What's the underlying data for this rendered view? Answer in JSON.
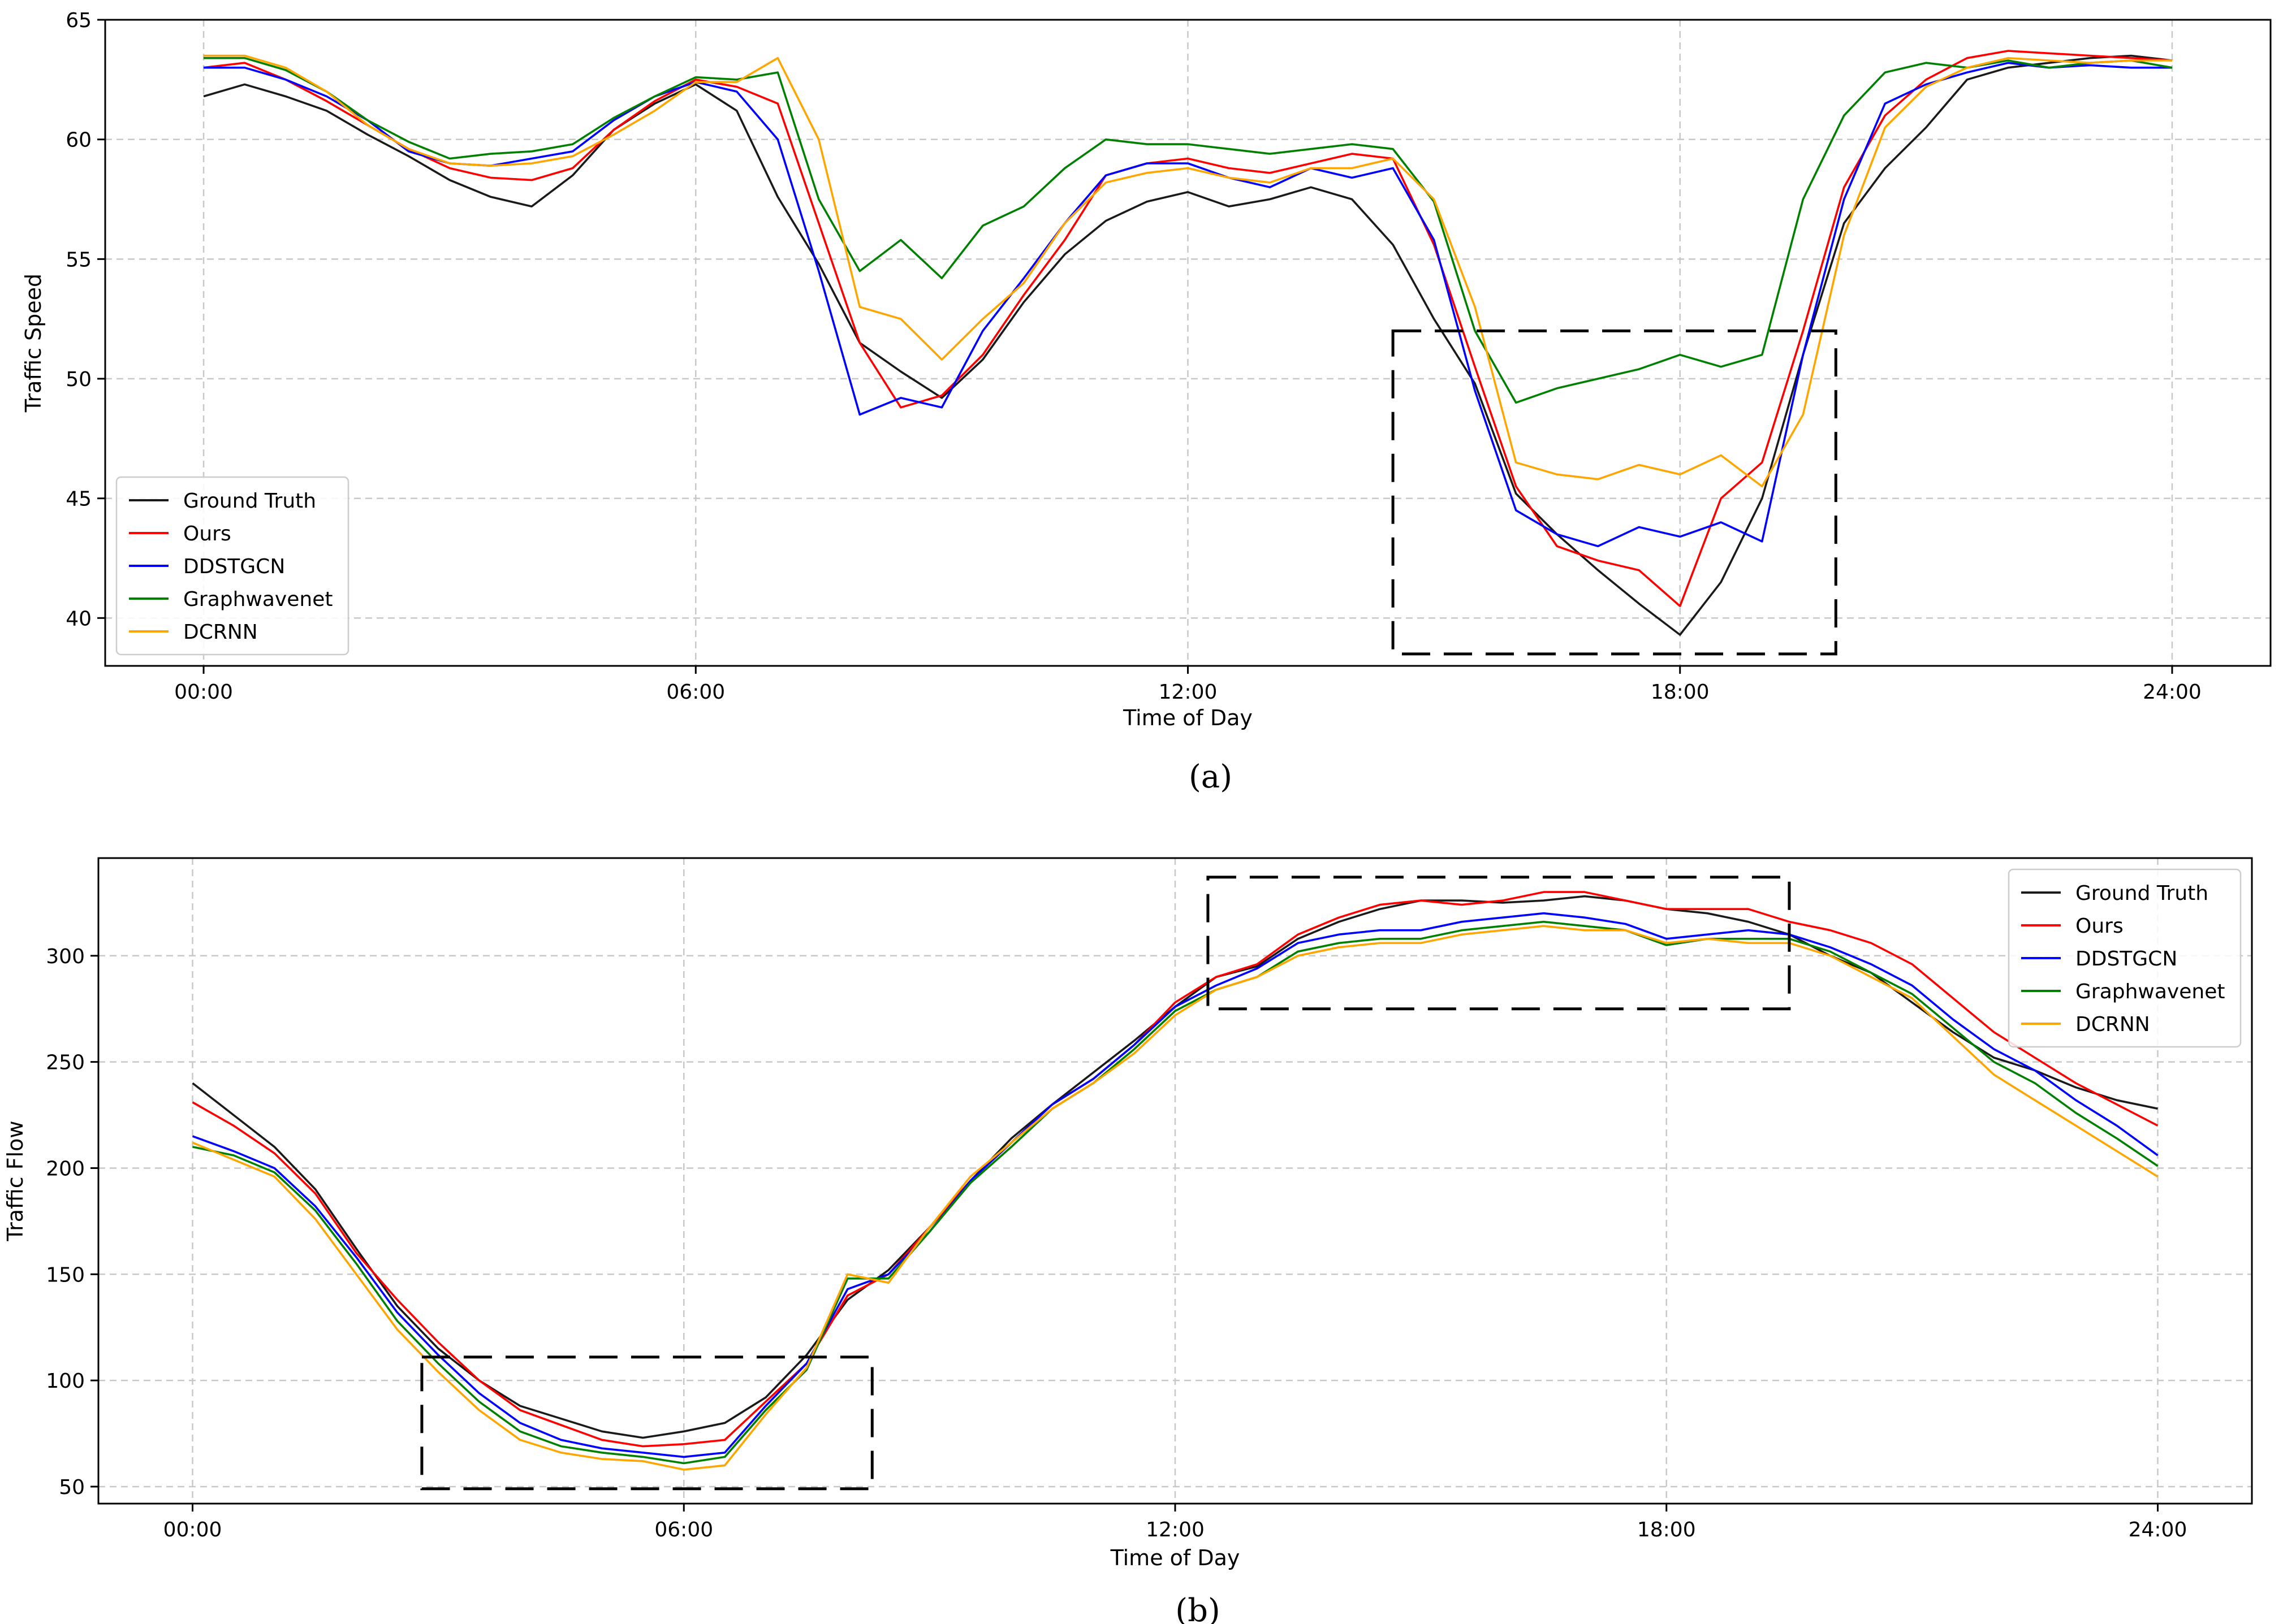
{
  "figure": {
    "captions": [
      "(a)",
      "(b)"
    ]
  },
  "colors": {
    "Ground Truth": "#1a1a1a",
    "Ours": "#ff0000",
    "DDSTGCN": "#0000ff",
    "Graphwavenet": "#008000",
    "DCRNN": "#ffa500"
  },
  "chart_data": [
    {
      "type": "line",
      "caption": "(a)",
      "xlabel": "Time of Day",
      "ylabel": "Traffic Speed",
      "x_ticks": [
        "00:00",
        "06:00",
        "12:00",
        "18:00",
        "24:00"
      ],
      "x_tick_hours": [
        0,
        6,
        12,
        18,
        24
      ],
      "xlim": [
        -1.2,
        25.2
      ],
      "ylim": [
        38,
        65
      ],
      "y_ticks": [
        40,
        45,
        50,
        55,
        60,
        65
      ],
      "grid": true,
      "legend_position": "lower-left",
      "highlight_box": {
        "x": [
          14.5,
          19.9
        ],
        "y": [
          38.5,
          52
        ]
      },
      "x_hours": [
        0,
        0.5,
        1,
        1.5,
        2,
        2.5,
        3,
        3.5,
        4,
        4.5,
        5,
        5.5,
        6,
        6.5,
        7,
        7.5,
        8,
        8.5,
        9,
        9.5,
        10,
        10.5,
        11,
        11.5,
        12,
        12.5,
        13,
        13.5,
        14,
        14.5,
        15,
        15.5,
        16,
        16.5,
        17,
        17.5,
        18,
        18.5,
        19,
        19.5,
        20,
        20.5,
        21,
        21.5,
        22,
        22.5,
        23,
        23.5,
        24
      ],
      "series": [
        {
          "name": "Ground Truth",
          "values": [
            61.8,
            62.3,
            61.8,
            61.2,
            60.2,
            59.3,
            58.3,
            57.6,
            57.2,
            58.5,
            60.4,
            61.5,
            62.3,
            61.2,
            57.6,
            54.8,
            51.5,
            50.3,
            49.2,
            50.8,
            53.2,
            55.2,
            56.6,
            57.4,
            57.8,
            57.2,
            57.5,
            58.0,
            57.5,
            55.6,
            52.5,
            49.8,
            45.2,
            43.5,
            42.0,
            40.6,
            39.3,
            41.5,
            45.0,
            51.0,
            56.5,
            58.8,
            60.5,
            62.5,
            63.0,
            63.2,
            63.4,
            63.5,
            63.3
          ]
        },
        {
          "name": "Ours",
          "values": [
            63.0,
            63.2,
            62.5,
            61.6,
            60.6,
            59.6,
            58.8,
            58.4,
            58.3,
            58.8,
            60.4,
            61.6,
            62.5,
            62.2,
            61.5,
            56.5,
            51.5,
            48.8,
            49.3,
            51.0,
            53.5,
            55.8,
            58.5,
            59.0,
            59.2,
            58.8,
            58.6,
            59.0,
            59.4,
            59.2,
            55.6,
            50.5,
            45.5,
            43.0,
            42.4,
            42.0,
            40.5,
            45.0,
            46.5,
            52.0,
            58.0,
            61.0,
            62.5,
            63.4,
            63.7,
            63.6,
            63.5,
            63.4,
            63.3
          ]
        },
        {
          "name": "DDSTGCN",
          "values": [
            63.0,
            63.0,
            62.5,
            61.8,
            60.8,
            59.5,
            59.0,
            58.9,
            59.2,
            59.5,
            60.8,
            61.8,
            62.4,
            62.0,
            60.0,
            54.5,
            48.5,
            49.2,
            48.8,
            52.0,
            54.2,
            56.5,
            58.5,
            59.0,
            59.0,
            58.4,
            58.0,
            58.8,
            58.4,
            58.8,
            55.8,
            49.5,
            44.5,
            43.5,
            43.0,
            43.8,
            43.4,
            44.0,
            43.2,
            51.0,
            57.5,
            61.5,
            62.3,
            62.8,
            63.2,
            63.0,
            63.1,
            63.0,
            63.0
          ]
        },
        {
          "name": "Graphwavenet",
          "values": [
            63.4,
            63.4,
            62.9,
            62.0,
            60.8,
            59.9,
            59.2,
            59.4,
            59.5,
            59.8,
            60.9,
            61.8,
            62.6,
            62.5,
            62.8,
            57.5,
            54.5,
            55.8,
            54.2,
            56.4,
            57.2,
            58.8,
            60.0,
            59.8,
            59.8,
            59.6,
            59.4,
            59.6,
            59.8,
            59.6,
            57.4,
            52.0,
            49.0,
            49.6,
            50.0,
            50.4,
            51.0,
            50.5,
            51.0,
            57.5,
            61.0,
            62.8,
            63.2,
            63.0,
            63.3,
            63.0,
            63.2,
            63.3,
            63.0
          ]
        },
        {
          "name": "DCRNN",
          "values": [
            63.5,
            63.5,
            63.0,
            62.0,
            60.6,
            59.6,
            59.0,
            58.9,
            59.0,
            59.3,
            60.2,
            61.2,
            62.4,
            62.4,
            63.4,
            60.0,
            53.0,
            52.5,
            50.8,
            52.5,
            54.0,
            56.5,
            58.2,
            58.6,
            58.8,
            58.4,
            58.2,
            58.8,
            58.8,
            59.2,
            57.5,
            53.0,
            46.5,
            46.0,
            45.8,
            46.4,
            46.0,
            46.8,
            45.5,
            48.5,
            56.0,
            60.5,
            62.2,
            63.0,
            63.4,
            63.3,
            63.2,
            63.3,
            63.3
          ]
        }
      ]
    },
    {
      "type": "line",
      "caption": "(b)",
      "xlabel": "Time of Day",
      "ylabel": "Traffic Flow",
      "x_ticks": [
        "00:00",
        "06:00",
        "12:00",
        "18:00",
        "24:00"
      ],
      "x_tick_hours": [
        0,
        6,
        12,
        18,
        24
      ],
      "xlim": [
        -1.15,
        25.15
      ],
      "ylim": [
        42,
        346
      ],
      "y_ticks": [
        50,
        100,
        150,
        200,
        250,
        300
      ],
      "grid": true,
      "legend_position": "upper-right",
      "highlight_boxes": [
        {
          "x": [
            2.8,
            8.3
          ],
          "y": [
            49,
            111
          ]
        },
        {
          "x": [
            12.4,
            19.5
          ],
          "y": [
            275,
            337
          ]
        }
      ],
      "x_hours": [
        0,
        0.5,
        1,
        1.5,
        2,
        2.5,
        3,
        3.5,
        4,
        4.5,
        5,
        5.5,
        6,
        6.5,
        7,
        7.5,
        8,
        8.5,
        9,
        9.5,
        10,
        10.5,
        11,
        11.5,
        12,
        12.5,
        13,
        13.5,
        14,
        14.5,
        15,
        15.5,
        16,
        16.5,
        17,
        17.5,
        18,
        18.5,
        19,
        19.5,
        20,
        20.5,
        21,
        21.5,
        22,
        22.5,
        23,
        23.5,
        24
      ],
      "series": [
        {
          "name": "Ground Truth",
          "values": [
            240,
            225,
            210,
            190,
            162,
            135,
            115,
            100,
            88,
            82,
            76,
            73,
            76,
            80,
            92,
            112,
            138,
            152,
            172,
            194,
            214,
            230,
            245,
            260,
            276,
            290,
            295,
            308,
            316,
            322,
            326,
            326,
            325,
            326,
            328,
            326,
            322,
            320,
            316,
            310,
            300,
            292,
            278,
            264,
            252,
            246,
            238,
            232,
            228
          ]
        },
        {
          "name": "Ours",
          "values": [
            231,
            220,
            207,
            188,
            160,
            138,
            118,
            100,
            86,
            79,
            72,
            69,
            70,
            72,
            90,
            108,
            140,
            150,
            172,
            194,
            212,
            230,
            242,
            258,
            278,
            290,
            296,
            310,
            318,
            324,
            326,
            324,
            326,
            330,
            330,
            326,
            322,
            322,
            322,
            316,
            312,
            306,
            296,
            280,
            264,
            252,
            240,
            230,
            220
          ]
        },
        {
          "name": "DDSTGCN",
          "values": [
            215,
            208,
            200,
            182,
            158,
            132,
            112,
            94,
            80,
            72,
            68,
            66,
            64,
            66,
            88,
            108,
            143,
            150,
            170,
            194,
            212,
            230,
            242,
            258,
            276,
            286,
            294,
            306,
            310,
            312,
            312,
            316,
            318,
            320,
            318,
            315,
            308,
            310,
            312,
            310,
            304,
            296,
            286,
            270,
            256,
            246,
            232,
            220,
            206
          ]
        },
        {
          "name": "Graphwavenet",
          "values": [
            210,
            206,
            198,
            180,
            155,
            128,
            108,
            90,
            76,
            69,
            66,
            64,
            61,
            64,
            86,
            105,
            148,
            148,
            170,
            193,
            210,
            228,
            240,
            256,
            274,
            284,
            290,
            302,
            306,
            308,
            308,
            312,
            314,
            316,
            314,
            312,
            305,
            308,
            308,
            308,
            302,
            292,
            282,
            266,
            250,
            240,
            226,
            214,
            201
          ]
        },
        {
          "name": "DCRNN",
          "values": [
            212,
            204,
            196,
            176,
            150,
            124,
            104,
            86,
            72,
            66,
            63,
            62,
            58,
            60,
            84,
            106,
            150,
            146,
            172,
            196,
            212,
            228,
            240,
            254,
            272,
            284,
            290,
            300,
            304,
            306,
            306,
            310,
            312,
            314,
            312,
            312,
            306,
            308,
            306,
            306,
            300,
            290,
            280,
            262,
            244,
            232,
            220,
            208,
            196
          ]
        }
      ]
    }
  ]
}
